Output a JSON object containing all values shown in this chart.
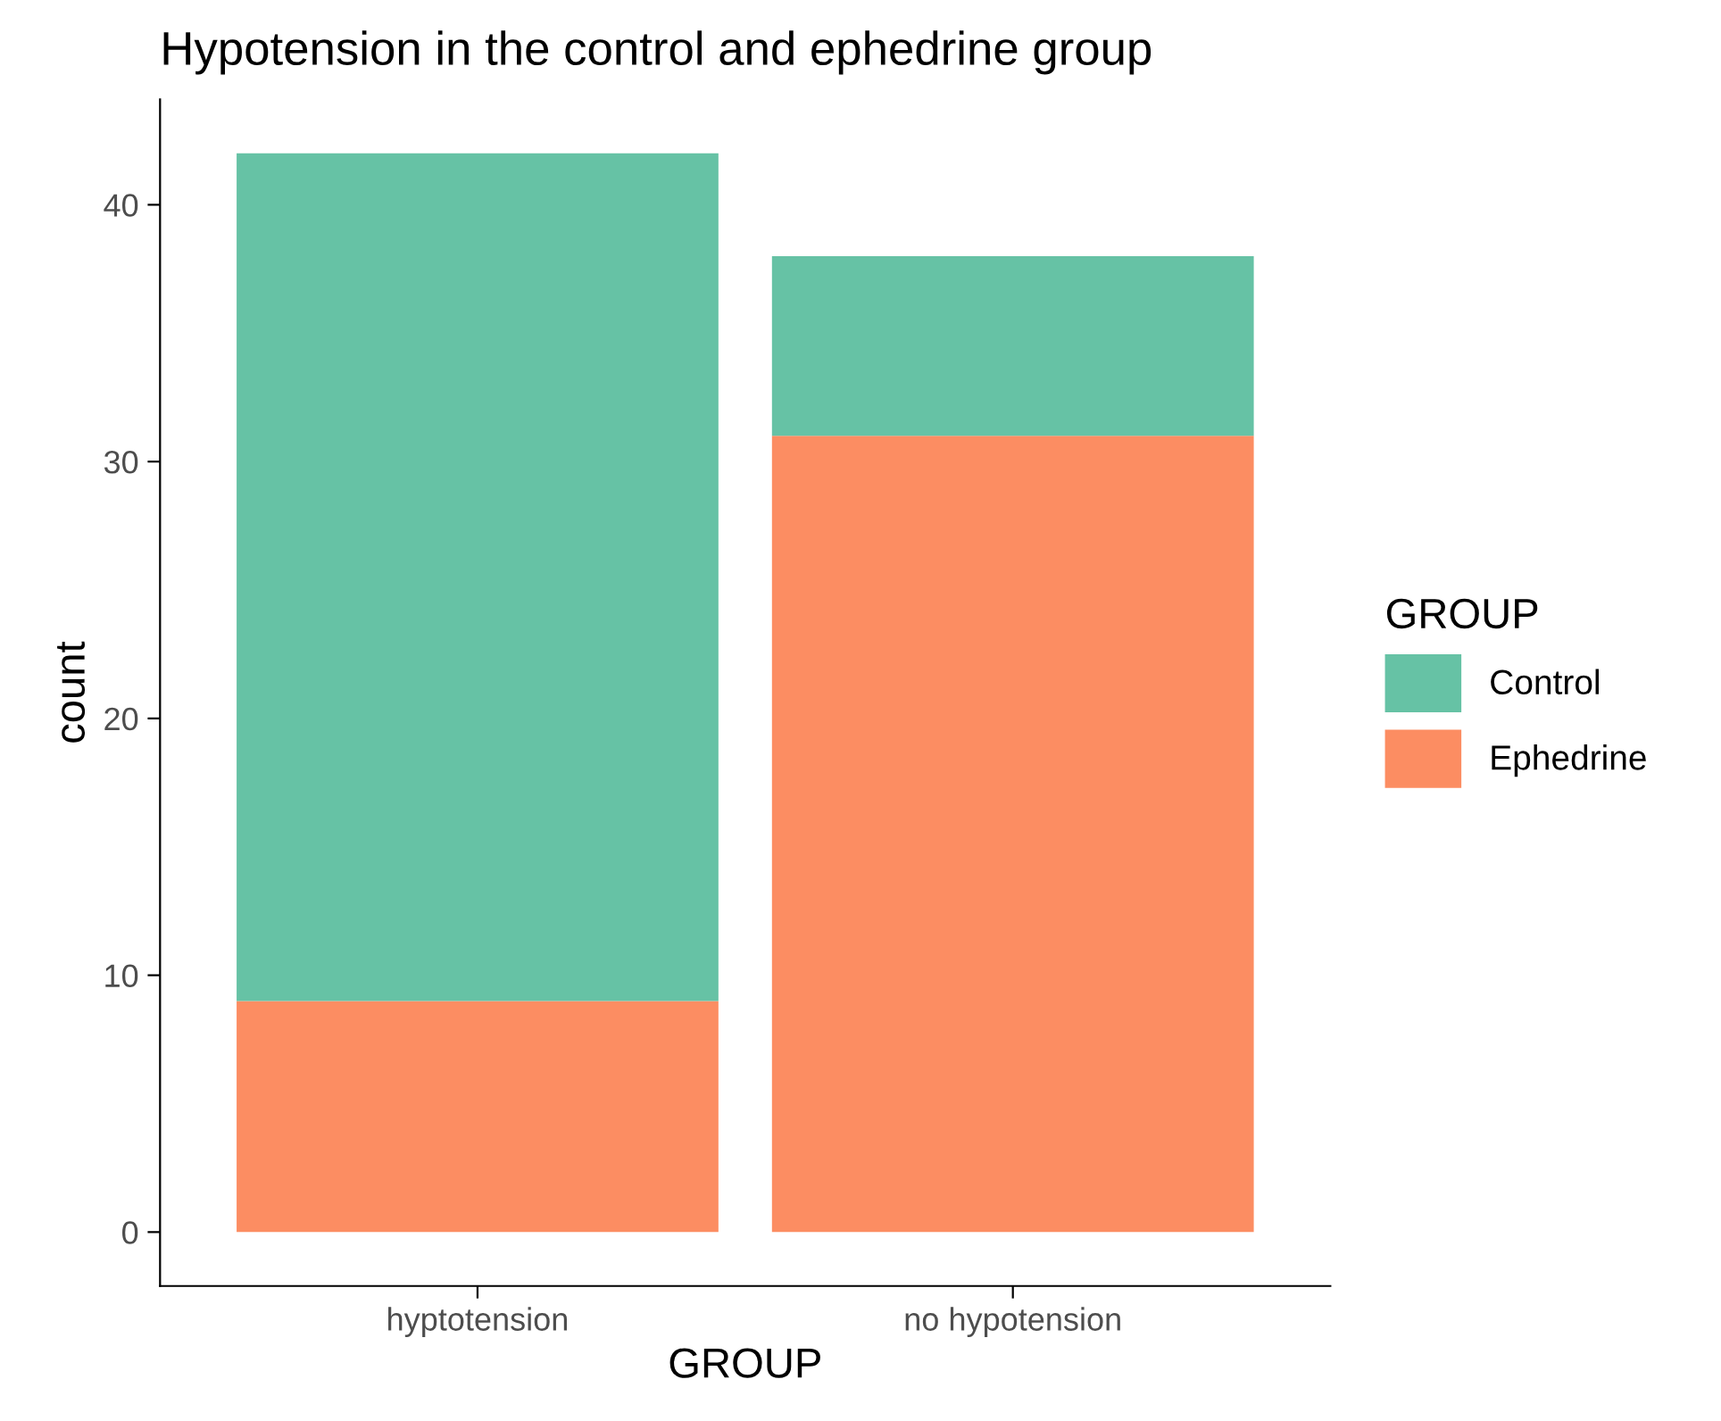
{
  "chart_data": {
    "type": "bar",
    "title": "Hypotension in the control and ephedrine group",
    "xlabel": "GROUP",
    "ylabel": "count",
    "legend_title": "GROUP",
    "categories": [
      "hyptotension",
      "no hypotension"
    ],
    "stacked": true,
    "series": [
      {
        "name": "Ephedrine",
        "color": "#fc8d62",
        "values": [
          9,
          31
        ]
      },
      {
        "name": "Control",
        "color": "#66c2a5",
        "values": [
          33,
          7
        ]
      }
    ],
    "ylim": [
      -2.1,
      44.1
    ],
    "yticks": [
      0,
      10,
      20,
      30,
      40
    ],
    "grid": false,
    "legend": "right"
  }
}
